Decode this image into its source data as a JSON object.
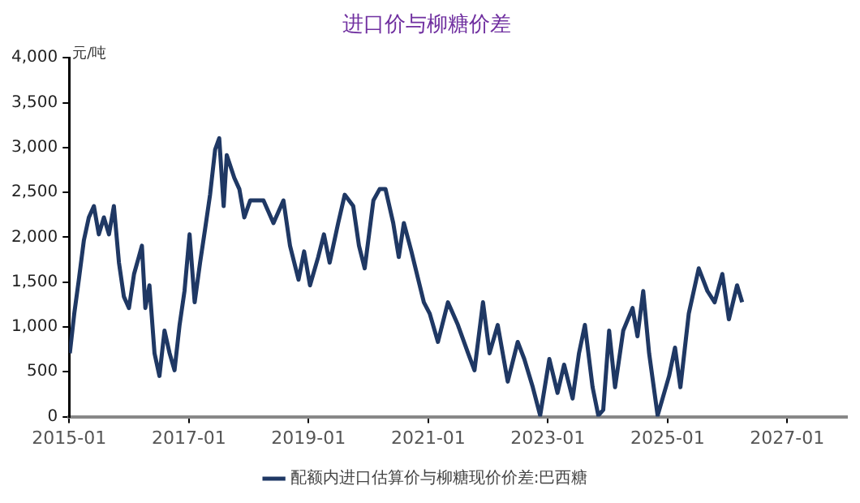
{
  "chart_data": {
    "type": "line",
    "title": "进口价与柳糖价差",
    "ylabel": "元/吨",
    "legend": "bottom",
    "grid": false,
    "marker": "none",
    "line_style": "solid",
    "xlim": [
      "2015-01",
      "2028-01"
    ],
    "xticks": [
      "2015-01",
      "2017-01",
      "2019-01",
      "2021-01",
      "2023-01",
      "2025-01",
      "2027-01"
    ],
    "ylim": [
      0,
      4000
    ],
    "yticks": [
      0,
      500,
      {
        "value": 1000,
        "label": "1,000"
      },
      {
        "value": 1500,
        "label": "1,500"
      },
      {
        "value": 2000,
        "label": "2,000"
      },
      {
        "value": 2500,
        "label": "2,500"
      },
      {
        "value": 3000,
        "label": "3,000"
      },
      {
        "value": 3500,
        "label": "3,500"
      },
      {
        "value": 4000,
        "label": "4,000"
      }
    ],
    "x": [
      "2015-01-05",
      "2015-02-01",
      "2015-03-01",
      "2015-04-01",
      "2015-05-01",
      "2015-06-01",
      "2015-07-01",
      "2015-08-01",
      "2015-09-01",
      "2015-10-01",
      "2015-11-01",
      "2015-12-01",
      "2016-01-01",
      "2016-02-01",
      "2016-03-01",
      "2016-03-20",
      "2016-04-10",
      "2016-05-05",
      "2016-06-05",
      "2016-07-05",
      "2016-08-05",
      "2016-09-05",
      "2016-10-05",
      "2016-11-05",
      "2016-12-05",
      "2017-01-05",
      "2017-02-05",
      "2017-03-10",
      "2017-04-10",
      "2017-05-10",
      "2017-06-10",
      "2017-07-05",
      "2017-08-01",
      "2017-08-20",
      "2017-10-05",
      "2017-11-05",
      "2017-12-05",
      "2018-01-10",
      "2018-04-01",
      "2018-06-01",
      "2018-08-01",
      "2018-09-10",
      "2018-11-01",
      "2018-12-05",
      "2019-01-10",
      "2019-03-01",
      "2019-04-05",
      "2019-05-10",
      "2019-07-01",
      "2019-08-10",
      "2019-10-01",
      "2019-11-05",
      "2019-12-10",
      "2020-02-01",
      "2020-03-10",
      "2020-04-15",
      "2020-06-01",
      "2020-07-05",
      "2020-08-05",
      "2020-09-20",
      "2020-11-01",
      "2020-12-05",
      "2021-01-10",
      "2021-03-01",
      "2021-05-01",
      "2021-07-01",
      "2021-09-01",
      "2021-10-10",
      "2021-12-01",
      "2022-01-10",
      "2022-03-01",
      "2022-05-01",
      "2022-07-01",
      "2022-08-10",
      "2022-10-01",
      "2022-11-15",
      "2023-01-10",
      "2023-03-01",
      "2023-04-10",
      "2023-06-01",
      "2023-07-10",
      "2023-08-15",
      "2023-10-01",
      "2023-11-05",
      "2023-12-05",
      "2024-01-10",
      "2024-02-15",
      "2024-04-05",
      "2024-06-01",
      "2024-07-01",
      "2024-08-05",
      "2024-09-10",
      "2024-11-01",
      "2025-01-10",
      "2025-02-15",
      "2025-03-20",
      "2025-05-10",
      "2025-07-10",
      "2025-09-01",
      "2025-10-15",
      "2025-12-01",
      "2026-01-10",
      "2026-03-01",
      "2026-04-01"
    ],
    "series": [
      {
        "name": "配额内进口估算价与柳糖现价价差:巴西糖",
        "color": "#1f3864",
        "values": [
          707,
          1148,
          1527,
          1968,
          2221,
          2347,
          2032,
          2221,
          2032,
          2347,
          1716,
          1338,
          1211,
          1590,
          1779,
          1905,
          1211,
          1464,
          707,
          454,
          959,
          707,
          517,
          1022,
          1400,
          2032,
          1275,
          1716,
          2095,
          2473,
          2978,
          3104,
          2347,
          2915,
          2662,
          2536,
          2221,
          2410,
          2410,
          2158,
          2410,
          1905,
          1527,
          1842,
          1464,
          1779,
          2032,
          1716,
          2158,
          2473,
          2347,
          1905,
          1653,
          2410,
          2536,
          2536,
          2158,
          1779,
          2158,
          1842,
          1527,
          1275,
          1148,
          833,
          1275,
          1022,
          707,
          517,
          1275,
          707,
          1022,
          391,
          833,
          643,
          328,
          13,
          643,
          265,
          580,
          202,
          707,
          1022,
          328,
          13,
          76,
          959,
          328,
          959,
          1211,
          896,
          1400,
          707,
          13,
          454,
          770,
          328,
          1148,
          1653,
          1400,
          1275,
          1590,
          1085,
          1464,
          1275
        ]
      }
    ]
  }
}
